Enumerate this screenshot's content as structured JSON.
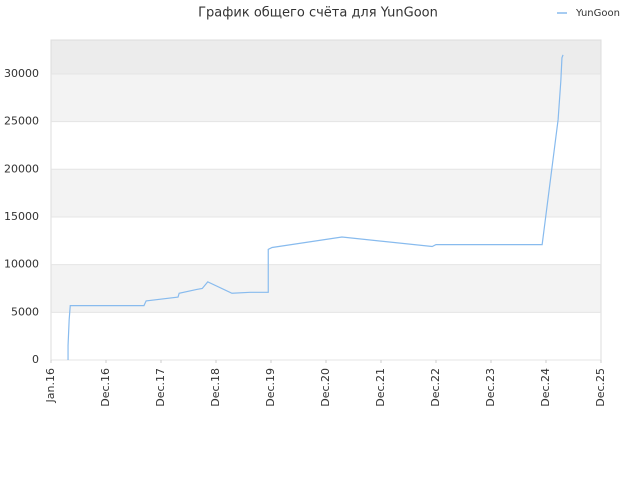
{
  "chart_data": {
    "type": "line",
    "title": "График общего счёта для YunGoon",
    "x": [
      0.31,
      0.31,
      0.33,
      0.35,
      1.69,
      1.73,
      2.31,
      2.33,
      2.65,
      2.75,
      2.85,
      3.29,
      3.62,
      3.95,
      3.95,
      4.02,
      5.29,
      6.93,
      7.0,
      8.93,
      9.22,
      9.27,
      9.29,
      9.31
    ],
    "series": [
      {
        "name": "YunGoon",
        "color": "#88bbee",
        "values": [
          0,
          1500,
          4200,
          5700,
          5700,
          6200,
          6600,
          7000,
          7400,
          7500,
          8200,
          7000,
          7100,
          7100,
          11600,
          11800,
          12900,
          11900,
          12100,
          12100,
          25200,
          29300,
          31700,
          32000
        ]
      }
    ],
    "xlim": [
      0,
      10
    ],
    "xticks": [
      {
        "value": 0,
        "label": "Jan.16"
      },
      {
        "value": 1,
        "label": "Dec.16"
      },
      {
        "value": 2,
        "label": "Dec.17"
      },
      {
        "value": 3,
        "label": "Dec.18"
      },
      {
        "value": 4,
        "label": "Dec.19"
      },
      {
        "value": 5,
        "label": "Dec.20"
      },
      {
        "value": 6,
        "label": "Dec.21"
      },
      {
        "value": 7,
        "label": "Dec.22"
      },
      {
        "value": 8,
        "label": "Dec.23"
      },
      {
        "value": 9,
        "label": "Dec.24"
      },
      {
        "value": 10,
        "label": "Dec.25"
      }
    ],
    "ylim": [
      0,
      33560
    ],
    "yticks": [
      0,
      5000,
      10000,
      15000,
      20000,
      25000,
      30000
    ],
    "grid": true,
    "legend": "top-right"
  }
}
